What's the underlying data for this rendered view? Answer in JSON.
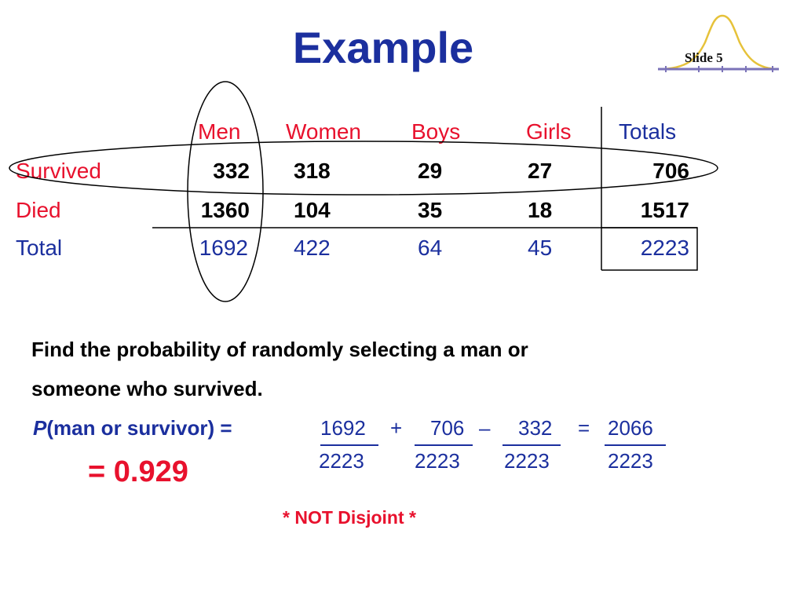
{
  "slide": {
    "title": "Example",
    "badge": "Slide 5"
  },
  "table": {
    "columns": [
      "Men",
      "Women",
      "Boys",
      "Girls",
      "Totals"
    ],
    "rows": [
      {
        "label": "Survived",
        "values": [
          "332",
          "318",
          "29",
          "27",
          "706"
        ]
      },
      {
        "label": "Died",
        "values": [
          "1360",
          "104",
          "35",
          "18",
          "1517"
        ]
      },
      {
        "label": "Total",
        "values": [
          "1692",
          "422",
          "64",
          "45",
          "2223"
        ]
      }
    ]
  },
  "question": {
    "line1": "Find the probability of randomly selecting a man or",
    "line2": "someone who survived."
  },
  "equation": {
    "p": "P",
    "lhs": "(man or survivor) =",
    "terms": [
      {
        "num": "1692",
        "den": "2223"
      },
      {
        "num": "706",
        "den": "2223"
      },
      {
        "num": "332",
        "den": "2223"
      },
      {
        "num": "2066",
        "den": "2223"
      }
    ],
    "ops": [
      "+",
      "–",
      "="
    ],
    "result": "= 0.929",
    "note": "* NOT Disjoint *"
  },
  "colors": {
    "title_blue": "#1b2f9e",
    "accent_red": "#e8112d",
    "badge_gold": "#e6c23a"
  }
}
